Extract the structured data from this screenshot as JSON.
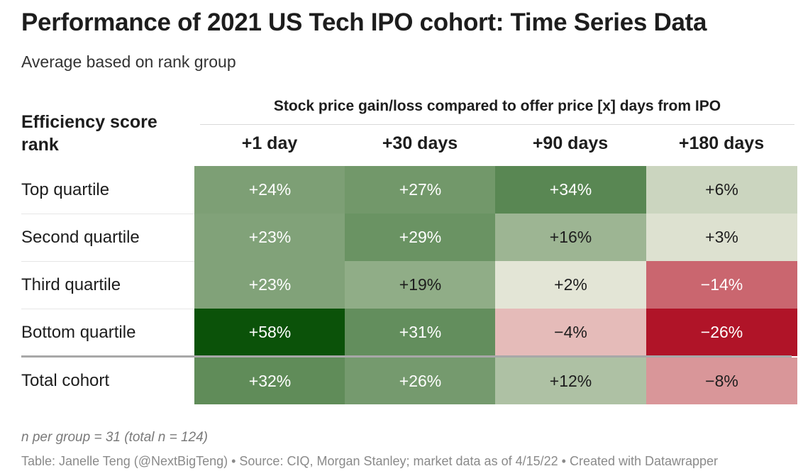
{
  "header": {
    "title": "Performance of 2021 US Tech IPO cohort: Time Series Data",
    "subtitle": "Average based on rank group"
  },
  "table": {
    "row_header": "Efficiency score rank",
    "spanner": "Stock price gain/loss compared to offer price [x] days from IPO"
  },
  "chart_data": {
    "type": "heatmap",
    "title": "Performance of 2021 US Tech IPO cohort: Time Series Data",
    "subtitle": "Average based on rank group",
    "columns": [
      "+1 day",
      "+30 days",
      "+90 days",
      "+180 days"
    ],
    "rows": [
      {
        "label": "Top quartile",
        "values": [
          24,
          27,
          34,
          6
        ],
        "display": [
          "+24%",
          "+27%",
          "+34%",
          "+6%"
        ]
      },
      {
        "label": "Second quartile",
        "values": [
          23,
          29,
          16,
          3
        ],
        "display": [
          "+23%",
          "+29%",
          "+16%",
          "+3%"
        ]
      },
      {
        "label": "Third quartile",
        "values": [
          23,
          19,
          2,
          -14
        ],
        "display": [
          "+23%",
          "+19%",
          "+2%",
          "−14%"
        ]
      },
      {
        "label": "Bottom quartile",
        "values": [
          58,
          31,
          -4,
          -26
        ],
        "display": [
          "+58%",
          "+31%",
          "−4%",
          "−26%"
        ]
      },
      {
        "label": "Total cohort",
        "values": [
          32,
          26,
          12,
          -8
        ],
        "display": [
          "+32%",
          "+26%",
          "+12%",
          "−8%"
        ]
      }
    ],
    "color_scale": {
      "negative": "#b01428",
      "neutral": "#f6f2e8",
      "positive": "#0b5209"
    }
  },
  "notes": {
    "sample": "n per group = 31 (total n = 124)",
    "credit": "Table: Janelle Teng (@NextBigTeng) • Source: CIQ, Morgan Stanley; market data as of 4/15/22 • Created with Datawrapper"
  }
}
